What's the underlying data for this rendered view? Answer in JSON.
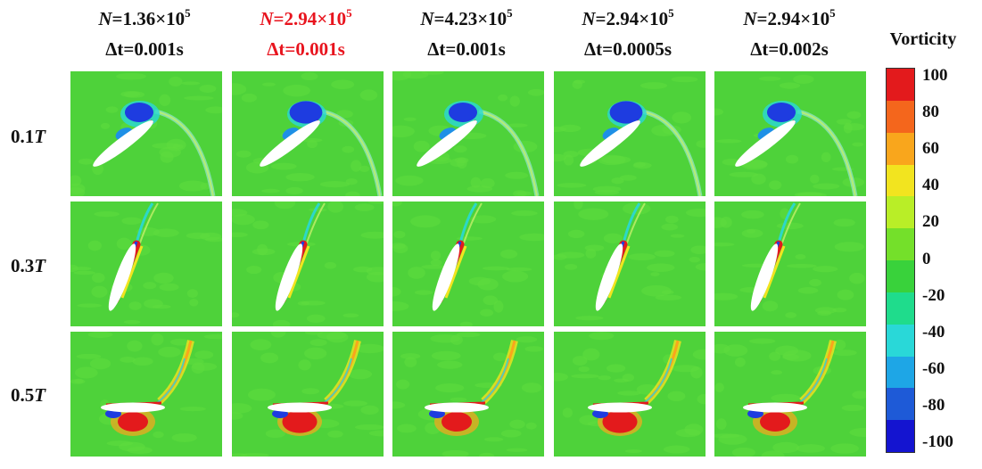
{
  "columns": [
    {
      "n_symbol": "N",
      "n_mant": "=1.36×10",
      "n_exp": "5",
      "dt_symbol": "Δt",
      "dt_rest": "=0.001s",
      "highlight": false
    },
    {
      "n_symbol": "N",
      "n_mant": "=2.94×10",
      "n_exp": "5",
      "dt_symbol": "Δt",
      "dt_rest": "=0.001s",
      "highlight": true
    },
    {
      "n_symbol": "N",
      "n_mant": "=4.23×10",
      "n_exp": "5",
      "dt_symbol": "Δt",
      "dt_rest": "=0.001s",
      "highlight": false
    },
    {
      "n_symbol": "N",
      "n_mant": "=2.94×10",
      "n_exp": "5",
      "dt_symbol": "Δt",
      "dt_rest": "=0.0005s",
      "highlight": false
    },
    {
      "n_symbol": "N",
      "n_mant": "=2.94×10",
      "n_exp": "5",
      "dt_symbol": "Δt",
      "dt_rest": "=0.002s",
      "highlight": false
    }
  ],
  "rows": [
    {
      "num": "0.1",
      "unit": "T"
    },
    {
      "num": "0.3",
      "unit": "T"
    },
    {
      "num": "0.5",
      "unit": "T"
    }
  ],
  "colorbar": {
    "title": "Vorticity",
    "ticks": [
      "100",
      "80",
      "60",
      "40",
      "20",
      "0",
      "-20",
      "-40",
      "-60",
      "-80",
      "-100"
    ],
    "colors": [
      "#e31a1c",
      "#f4661c",
      "#f9a61c",
      "#f2e41f",
      "#b9ee27",
      "#74e02a",
      "#39d23b",
      "#1fdc8c",
      "#29d8d8",
      "#1ea6e6",
      "#1e5ad7",
      "#1414d0"
    ]
  },
  "field_colors": {
    "background": "#4ed23a",
    "mottle": "#5fdc3e",
    "airfoil": "#ffffff",
    "positive": "#e31a1c",
    "negative": "#1e3ce0"
  }
}
